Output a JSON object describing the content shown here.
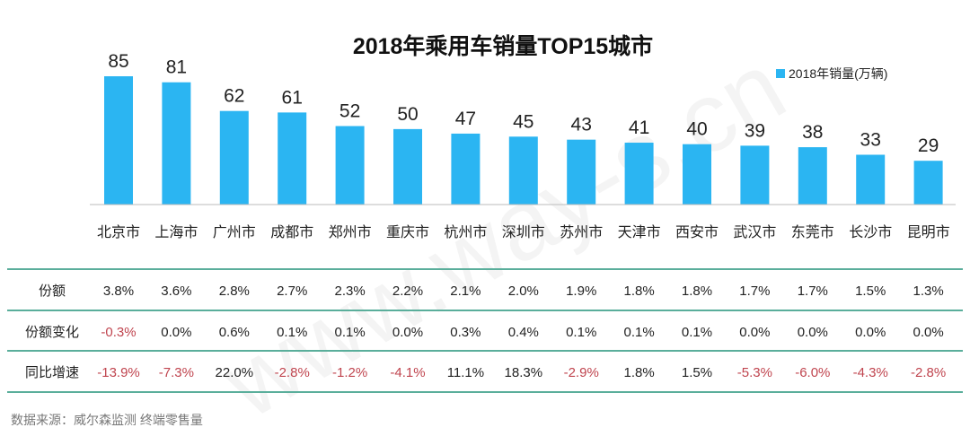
{
  "chart_data": {
    "type": "bar",
    "title": "2018年乘用车销量TOP15城市",
    "legend": {
      "label": "2018年销量(万辆)",
      "placement": "top-right"
    },
    "categories": [
      "北京市",
      "上海市",
      "广州市",
      "成都市",
      "郑州市",
      "重庆市",
      "杭州市",
      "深圳市",
      "苏州市",
      "天津市",
      "西安市",
      "武汉市",
      "东莞市",
      "长沙市",
      "昆明市"
    ],
    "values": [
      85,
      81,
      62,
      61,
      52,
      50,
      47,
      45,
      43,
      41,
      40,
      39,
      38,
      33,
      29
    ],
    "ylim": [
      0,
      85
    ],
    "xlabel": "",
    "ylabel": "",
    "table": [
      {
        "label": "份额",
        "values": [
          "3.8%",
          "3.6%",
          "2.8%",
          "2.7%",
          "2.3%",
          "2.2%",
          "2.1%",
          "2.0%",
          "1.9%",
          "1.8%",
          "1.8%",
          "1.7%",
          "1.7%",
          "1.5%",
          "1.3%"
        ]
      },
      {
        "label": "份额变化",
        "values": [
          "-0.3%",
          "0.0%",
          "0.6%",
          "0.1%",
          "0.1%",
          "0.0%",
          "0.3%",
          "0.4%",
          "0.1%",
          "0.1%",
          "0.1%",
          "0.0%",
          "0.0%",
          "0.0%",
          "0.0%"
        ]
      },
      {
        "label": "同比增速",
        "values": [
          "-13.9%",
          "-7.3%",
          "22.0%",
          "-2.8%",
          "-1.2%",
          "-4.1%",
          "11.1%",
          "18.3%",
          "-2.9%",
          "1.8%",
          "1.5%",
          "-5.3%",
          "-6.0%",
          "-4.3%",
          "-2.8%"
        ]
      }
    ]
  },
  "source": "数据来源：威尔森监测  终端零售量",
  "watermark": "www.way-s.cn",
  "colors": {
    "bar": "#2bb5f2",
    "line": "#5aae9b",
    "negative": "#c0454f",
    "text": "#222222"
  }
}
